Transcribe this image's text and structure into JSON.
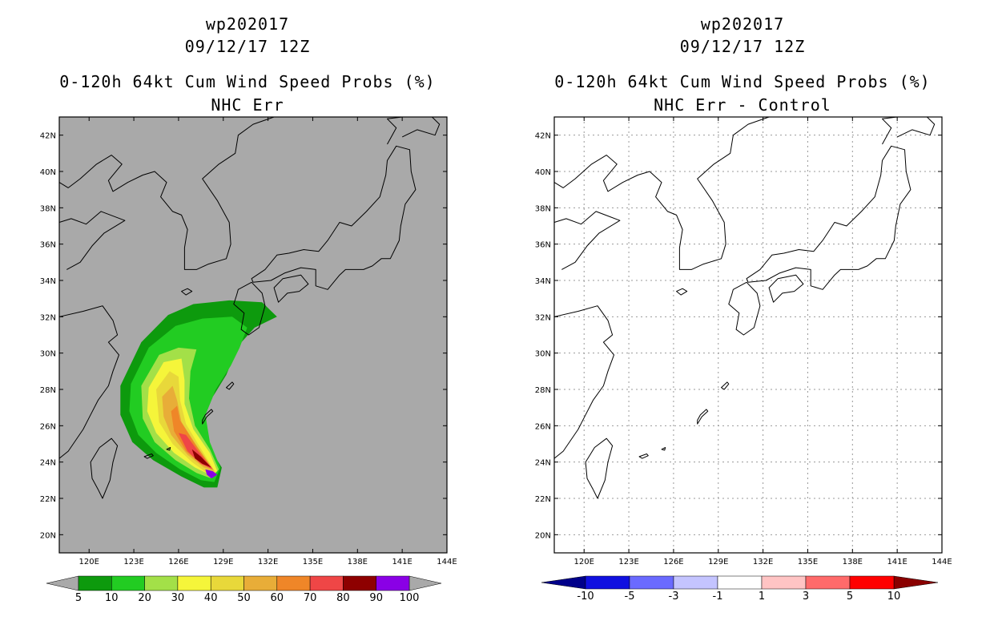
{
  "panels": [
    {
      "id": "left",
      "title_line1": "wp202017",
      "title_line2": "09/12/17 12Z",
      "title_line3": "0-120h 64kt Cum Wind Speed Probs (%)",
      "title_line4": "NHC Err",
      "colorbar_labels": [
        "5",
        "10",
        "20",
        "30",
        "40",
        "50",
        "60",
        "70",
        "80",
        "90",
        "100"
      ],
      "colorbar_colors": [
        "#0d9a0d",
        "#22cc22",
        "#a3e048",
        "#f5f53a",
        "#e8d83a",
        "#e8ad38",
        "#ef8628",
        "#ef4646",
        "#8e0000",
        "#8a00e6"
      ]
    },
    {
      "id": "right",
      "title_line1": "wp202017",
      "title_line2": "09/12/17 12Z",
      "title_line3": "0-120h 64kt Cum Wind Speed Probs (%)",
      "title_line4": "NHC Err - Control",
      "colorbar_labels": [
        "-10",
        "-5",
        "-3",
        "-1",
        "1",
        "3",
        "5",
        "10"
      ],
      "colorbar_colors": [
        "#1010e0",
        "#6a6aff",
        "#c4c4ff",
        "#ffffff",
        "#ffc4c4",
        "#ff6a6a",
        "#ff0000"
      ],
      "colorbar_end_colors": [
        "#00008a",
        "#8a0000"
      ]
    }
  ],
  "map": {
    "lat_ticks": [
      "20N",
      "22N",
      "24N",
      "26N",
      "28N",
      "30N",
      "32N",
      "34N",
      "36N",
      "38N",
      "40N",
      "42N"
    ],
    "lon_ticks": [
      "120E",
      "123E",
      "126E",
      "129E",
      "132E",
      "135E",
      "138E",
      "141E",
      "144E"
    ],
    "lat_range": [
      19,
      43
    ],
    "lon_range": [
      118,
      144
    ]
  },
  "colors": {
    "map_background_left": "#a9a9a9",
    "map_background_right": "#ffffff",
    "coastline": "#000000",
    "grid_right": "#999999"
  }
}
